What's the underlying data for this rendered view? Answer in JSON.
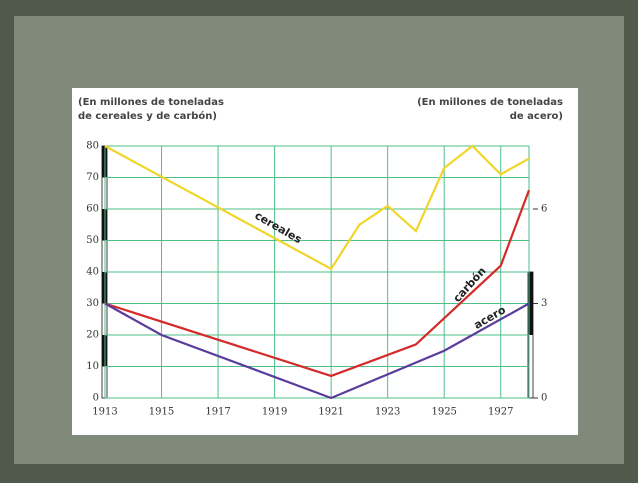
{
  "chart_data": {
    "type": "line",
    "ylabel": [
      "(En millones de toneladas",
      "de cereales y de carbón)"
    ],
    "y2label": [
      "(En millones de toneladas",
      "de acero)"
    ],
    "xlim": [
      1913,
      1928
    ],
    "xticks": [
      1913,
      1915,
      1917,
      1919,
      1921,
      1923,
      1925,
      1927
    ],
    "ylim": [
      0,
      80
    ],
    "yticks": [
      0,
      10,
      20,
      30,
      40,
      50,
      60,
      70,
      80
    ],
    "y2lim": [
      0,
      8
    ],
    "y2ticks": [
      0,
      3,
      6
    ],
    "grid": true,
    "grid_color": "#4fbf8a",
    "series": [
      {
        "name": "cereales",
        "color": "#f0d628",
        "x": [
          1913,
          1921,
          1922,
          1923,
          1924,
          1925,
          1926,
          1927,
          1928
        ],
        "values": [
          80,
          41,
          55,
          61,
          53,
          73,
          80,
          71,
          76
        ]
      },
      {
        "name": "carbón",
        "color": "#d42a2a",
        "x": [
          1913,
          1921,
          1924,
          1927,
          1928
        ],
        "values": [
          30,
          7,
          17,
          42,
          66
        ]
      },
      {
        "name": "acero",
        "color": "#5a3c9c",
        "axis": "y2",
        "x": [
          1913,
          1915,
          1921,
          1925,
          1928
        ],
        "values": [
          3,
          2,
          0,
          1.5,
          3
        ]
      }
    ]
  }
}
